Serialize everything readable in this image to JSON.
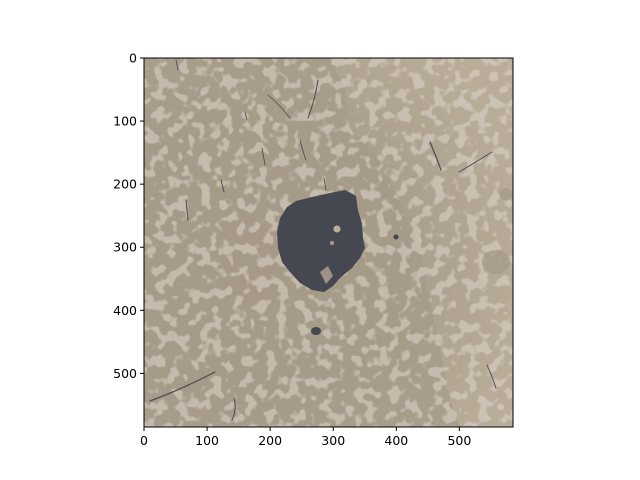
{
  "chart_data": {
    "type": "heatmap",
    "title": "",
    "xlabel": "",
    "ylabel": "",
    "image_size": [
      585,
      585
    ],
    "xlim": [
      0,
      585
    ],
    "ylim": [
      585,
      0
    ],
    "x_ticks": [
      0,
      100,
      200,
      300,
      400,
      500
    ],
    "y_ticks": [
      0,
      100,
      200,
      300,
      400,
      500
    ],
    "x_tick_labels": [
      "0",
      "100",
      "200",
      "300",
      "400",
      "500"
    ],
    "y_tick_labels": [
      "0",
      "100",
      "200",
      "300",
      "400",
      "500"
    ],
    "grid": false,
    "legend": "none",
    "colormap": {
      "background_light": "#b9ad9a",
      "background_mid": "#a69a88",
      "lesion": "#454850",
      "streaks": "#4a4a50"
    }
  }
}
